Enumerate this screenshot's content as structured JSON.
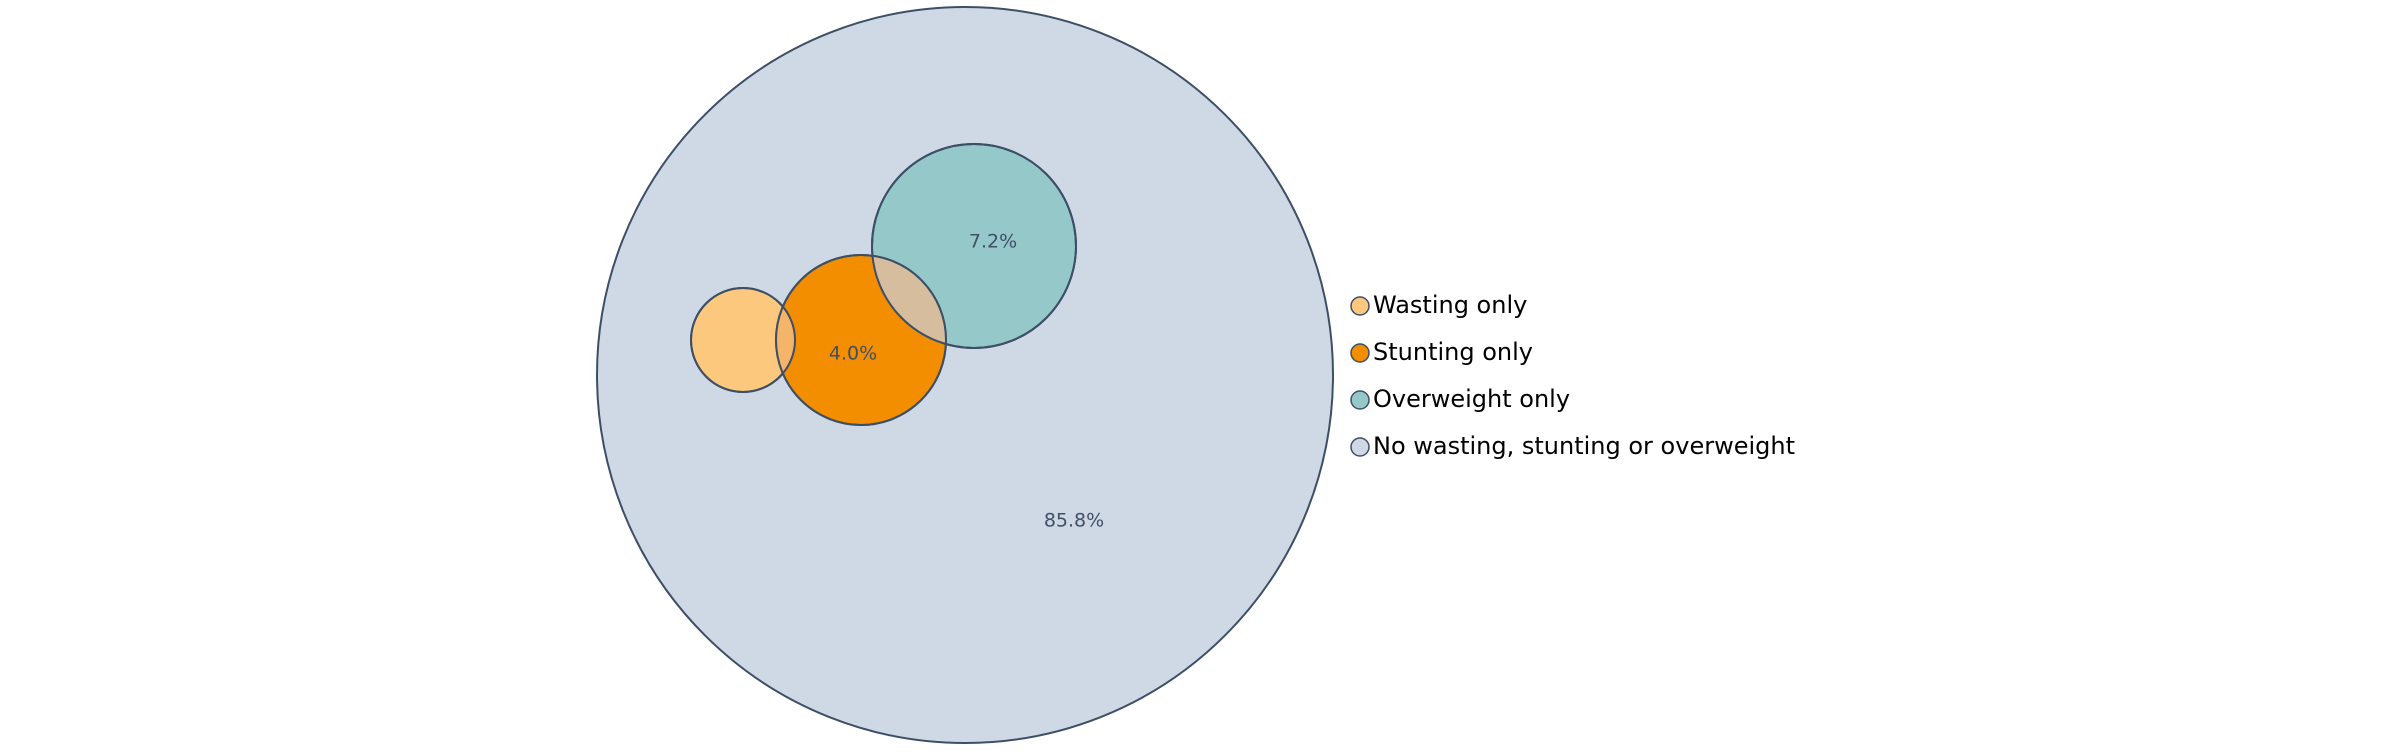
{
  "chart_data": {
    "type": "venn",
    "sets": [
      {
        "key": "total",
        "label": "No wasting, stunting or overweight",
        "value_label": "85.8%",
        "color": "#cfd9e6"
      },
      {
        "key": "wasting",
        "label": "Wasting only",
        "value_label": "",
        "color": "#fbc87d"
      },
      {
        "key": "stunting",
        "label": "Stunting only",
        "value_label": "4.0%",
        "color": "#f28e00"
      },
      {
        "key": "overweight",
        "label": "Overweight only",
        "value_label": "7.2%",
        "color": "#95c9c9"
      }
    ],
    "overlap_colors": {
      "wasting_stunting": "#f6b46a",
      "stunting_overweight": "#d6bd9e"
    },
    "legend": {
      "placement": "right",
      "items": [
        {
          "label": "Wasting only",
          "color": "#fbc87d"
        },
        {
          "label": "Stunting only",
          "color": "#f28e00"
        },
        {
          "label": "Overweight only",
          "color": "#95c9c9"
        },
        {
          "label": "No wasting, stunting or overweight",
          "color": "#cfd9e6"
        }
      ]
    },
    "stroke_color": "#3d4f66"
  }
}
